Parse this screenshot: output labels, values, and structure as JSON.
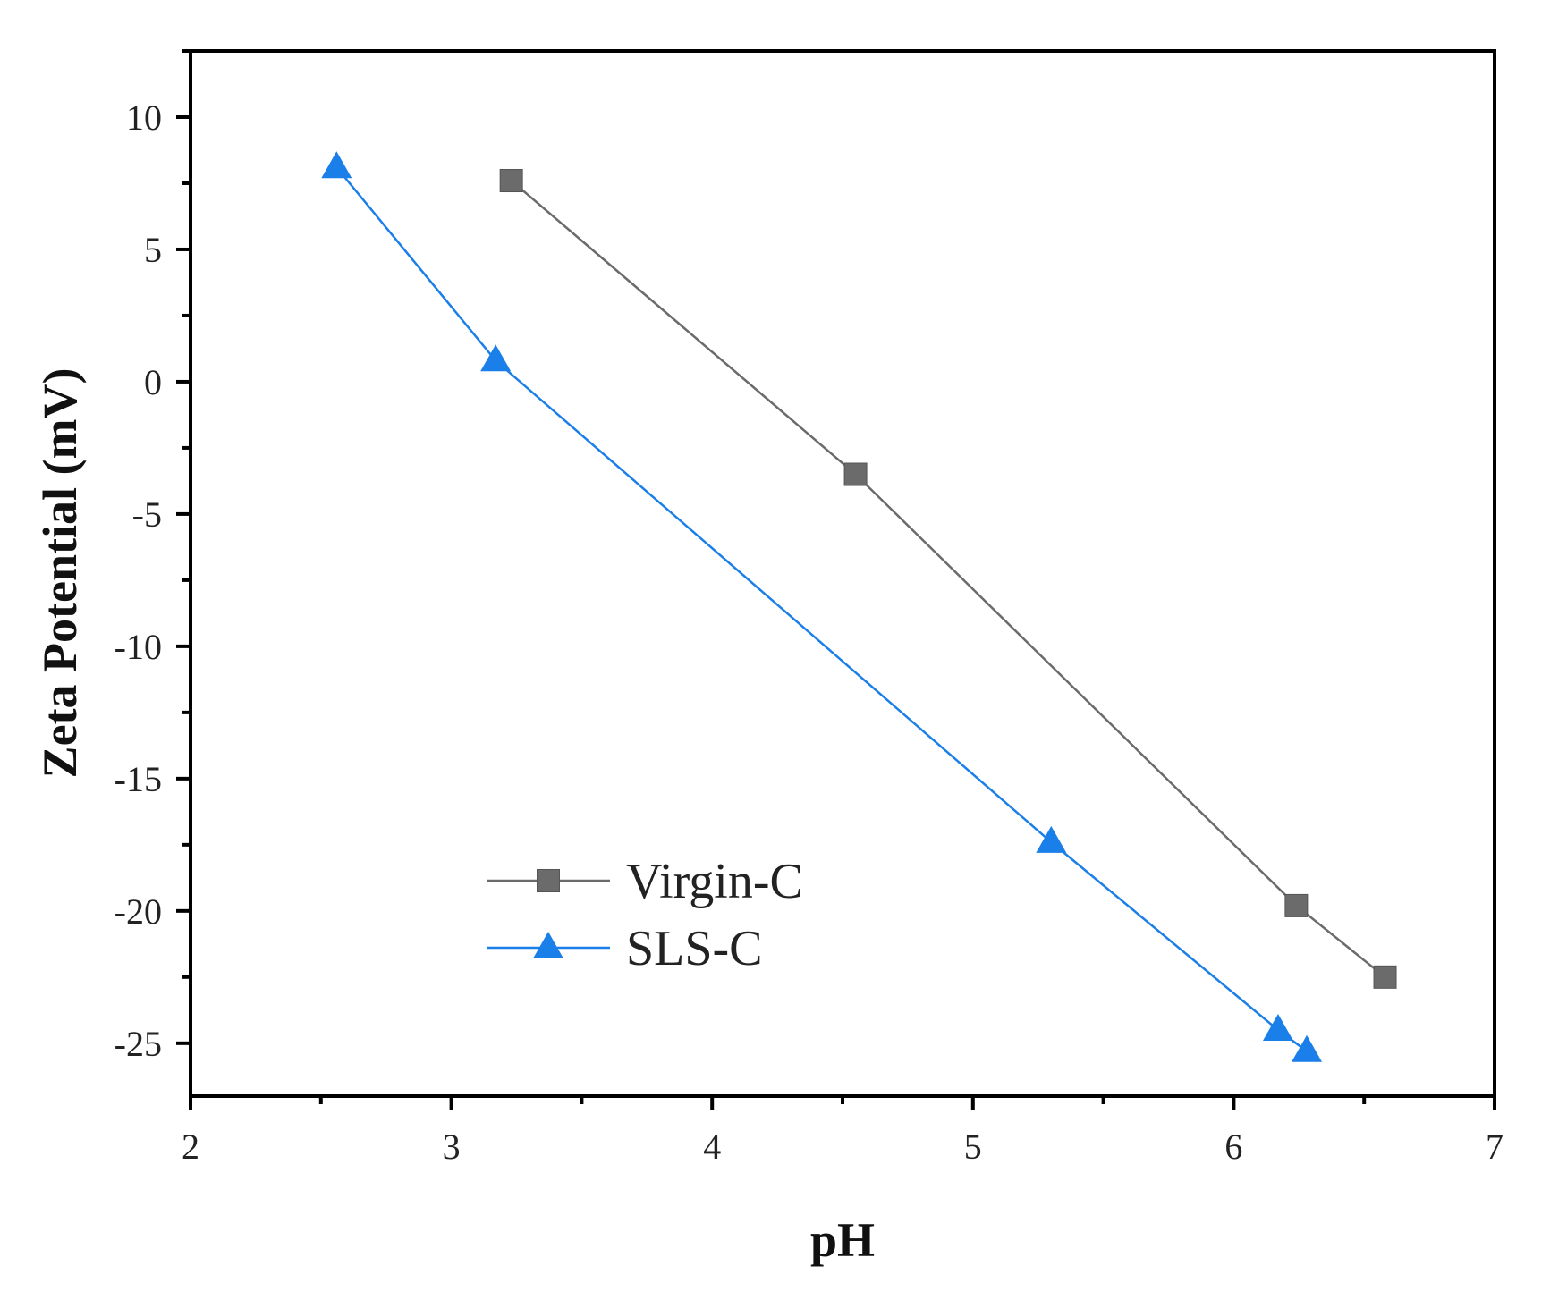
{
  "chart_data": {
    "type": "line",
    "title": "",
    "xlabel": "pH",
    "ylabel": "Zeta Potential (mV)",
    "xlim": [
      2,
      7
    ],
    "ylim": [
      -27,
      12.5
    ],
    "xticks": [
      2,
      3,
      4,
      5,
      6,
      7
    ],
    "yticks": [
      10,
      5,
      0,
      -5,
      -10,
      -15,
      -20,
      -25
    ],
    "grid": false,
    "legend_position": "bottom-left",
    "series": [
      {
        "name": "Virgin-C",
        "marker": "square",
        "color": "#6b6b6b",
        "x": [
          3.23,
          4.55,
          6.24,
          6.58
        ],
        "y": [
          7.6,
          -3.5,
          -19.8,
          -22.5
        ]
      },
      {
        "name": "SLS-C",
        "marker": "triangle",
        "color": "#1a7fe8",
        "x": [
          2.56,
          3.17,
          5.3,
          6.17,
          6.28
        ],
        "y": [
          8.1,
          0.8,
          -17.4,
          -24.5,
          -25.3
        ]
      }
    ]
  }
}
